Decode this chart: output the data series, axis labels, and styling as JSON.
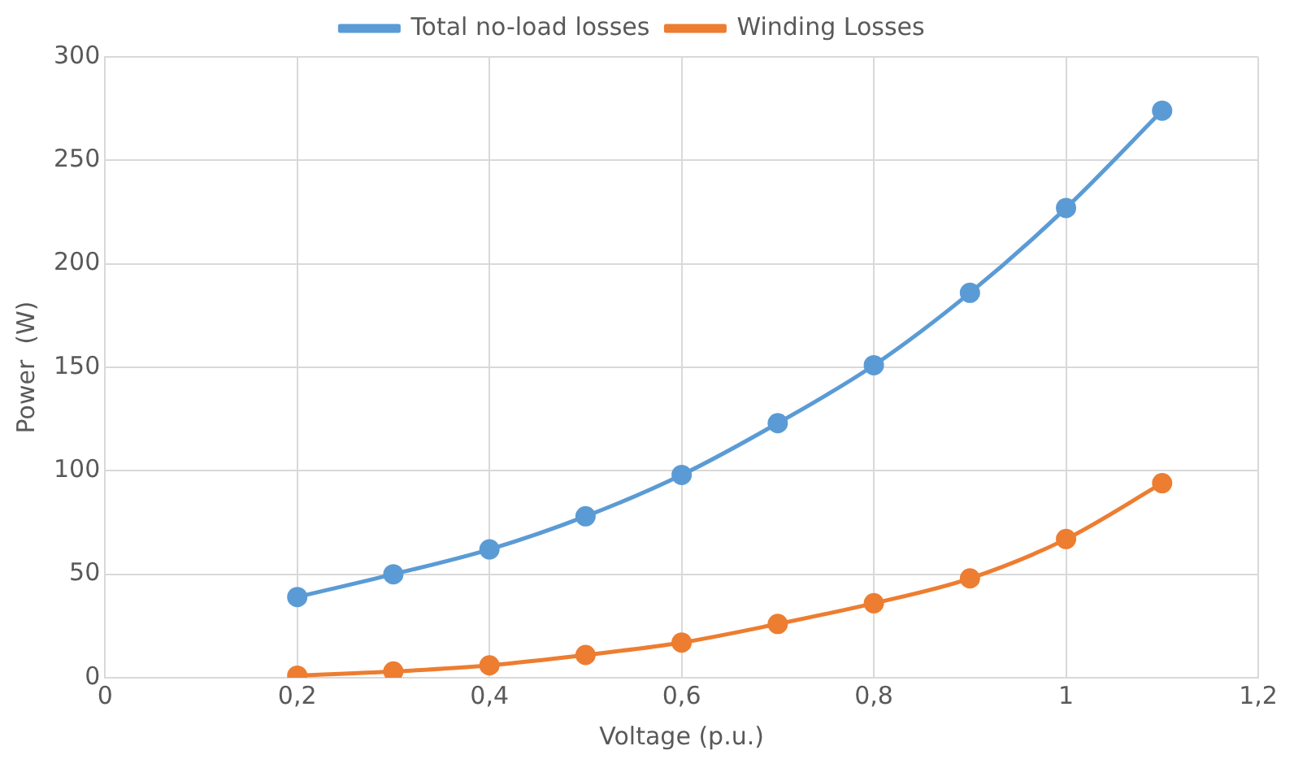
{
  "chart_data": {
    "type": "line",
    "xlabel": "Voltage (p.u.)",
    "ylabel": "Power  (W)",
    "x": [
      0.2,
      0.3,
      0.4,
      0.5,
      0.6,
      0.7,
      0.8,
      0.9,
      1.0,
      1.1
    ],
    "series": [
      {
        "name": "Total no-load losses",
        "color": "#5b9bd5",
        "values": [
          39,
          50,
          62,
          78,
          98,
          123,
          151,
          186,
          227,
          274
        ]
      },
      {
        "name": "Winding Losses",
        "color": "#ed7d31",
        "values": [
          1,
          3,
          6,
          11,
          17,
          26,
          36,
          48,
          67,
          94
        ]
      }
    ],
    "xlim": [
      0,
      1.2
    ],
    "xticks": [
      0,
      {
        "value": 0.2,
        "label": "0,2"
      },
      {
        "value": 0.4,
        "label": "0,4"
      },
      {
        "value": 0.6,
        "label": "0,6"
      },
      {
        "value": 0.8,
        "label": "0,8"
      },
      1,
      {
        "value": 1.2,
        "label": "1,2"
      }
    ],
    "ylim": [
      0,
      300
    ],
    "yticks": [
      0,
      50,
      100,
      150,
      200,
      250,
      300
    ],
    "grid": true,
    "legend": "top",
    "marker": "circle",
    "line_style": "solid"
  }
}
